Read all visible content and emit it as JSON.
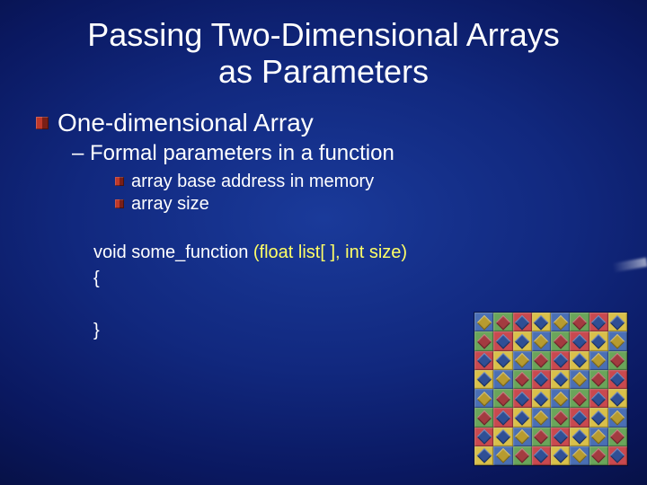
{
  "title_line1": "Passing Two-Dimensional Arrays",
  "title_line2": "as Parameters",
  "bullet1": "One-dimensional Array",
  "bullet2": "– Formal parameters in a function",
  "bullet3a": "array base address in memory",
  "bullet3b": "array size",
  "code": {
    "line1_fn": "void some_function ",
    "line1_params": "(float list[ ], int size)",
    "brace_open": "{",
    "brace_close": "}"
  },
  "colors": {
    "text": "#ffffff",
    "param_highlight": "#ffff66",
    "bullet_red_light": "#c0392b",
    "bullet_red_dark": "#7a1f17",
    "bg_center": "#1a3a9a",
    "bg_edge": "#020620"
  },
  "pattern": {
    "size": 8,
    "palette": {
      "R": "#c9494f",
      "G": "#6aa55a",
      "B": "#4a6fb5",
      "Y": "#d9c04a",
      "r": "#a33b40",
      "b": "#2f4f95",
      "y": "#b79b2f"
    },
    "grid": [
      [
        "B",
        "G",
        "R",
        "Y",
        "B",
        "G",
        "R",
        "Y"
      ],
      [
        "G",
        "R",
        "Y",
        "B",
        "G",
        "R",
        "Y",
        "B"
      ],
      [
        "R",
        "Y",
        "B",
        "G",
        "R",
        "Y",
        "B",
        "G"
      ],
      [
        "Y",
        "B",
        "G",
        "R",
        "Y",
        "B",
        "G",
        "R"
      ],
      [
        "B",
        "G",
        "R",
        "Y",
        "B",
        "G",
        "R",
        "Y"
      ],
      [
        "G",
        "R",
        "Y",
        "B",
        "G",
        "R",
        "Y",
        "B"
      ],
      [
        "R",
        "Y",
        "B",
        "G",
        "R",
        "Y",
        "B",
        "G"
      ],
      [
        "Y",
        "B",
        "G",
        "R",
        "Y",
        "B",
        "G",
        "R"
      ]
    ],
    "diamond_colors": {
      "B": "y",
      "G": "r",
      "R": "b",
      "Y": "b"
    }
  }
}
